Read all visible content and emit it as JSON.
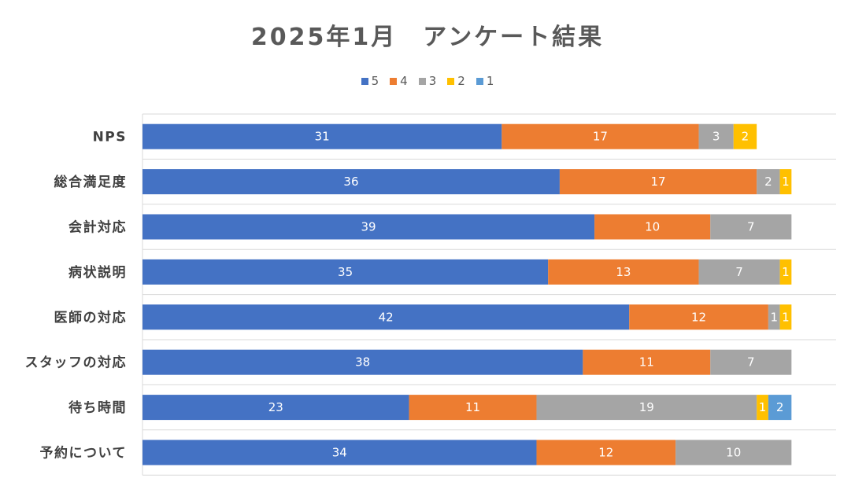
{
  "chart_data": {
    "type": "bar",
    "orientation": "horizontal",
    "stacked": true,
    "title": "2025年1月　アンケート結果",
    "categories": [
      "NPS",
      "総合満足度",
      "会計対応",
      "病状説明",
      "医師の対応",
      "スタッフの対応",
      "待ち時間",
      "予約について"
    ],
    "series": [
      {
        "name": "5",
        "color": "#4472C4",
        "values": [
          31,
          36,
          39,
          35,
          42,
          38,
          23,
          34
        ]
      },
      {
        "name": "4",
        "color": "#ED7D31",
        "values": [
          17,
          17,
          10,
          13,
          12,
          11,
          11,
          12
        ]
      },
      {
        "name": "3",
        "color": "#A5A5A5",
        "values": [
          3,
          2,
          7,
          7,
          1,
          7,
          19,
          10
        ]
      },
      {
        "name": "2",
        "color": "#FFC000",
        "values": [
          2,
          1,
          0,
          1,
          1,
          0,
          1,
          0
        ]
      },
      {
        "name": "1",
        "color": "#5B9BD5",
        "values": [
          0,
          0,
          0,
          0,
          0,
          0,
          2,
          0
        ]
      }
    ],
    "legend_position": "top",
    "grid": true
  }
}
